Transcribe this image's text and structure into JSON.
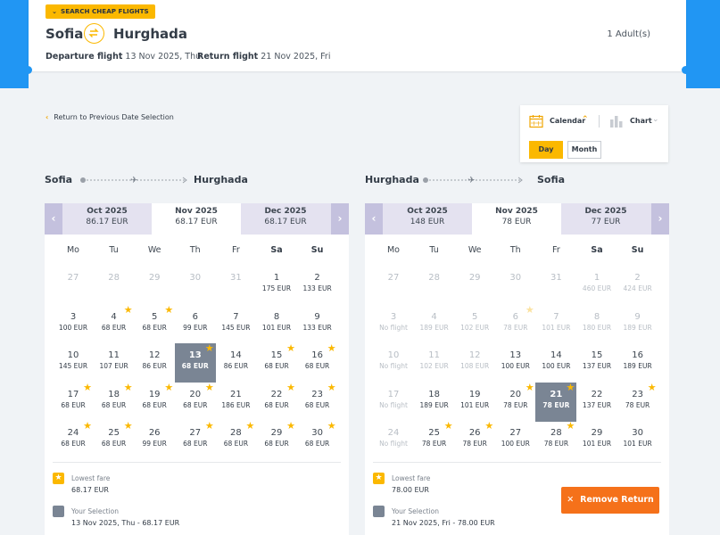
{
  "header": {
    "badge": "SEARCH CHEAP FLIGHTS",
    "origin": "Sofia",
    "destination": "Hurghada",
    "passengers": "1 Adult(s)",
    "departure_label": "Departure flight",
    "departure_date": "13 Nov 2025, Thu",
    "return_label": "Return flight",
    "return_date": "21 Nov 2025, Fri"
  },
  "back_link": "Return to Previous Date Selection",
  "view": {
    "calendar_label": "Calendar",
    "chart_label": "Chart",
    "day_label": "Day",
    "month_label": "Month"
  },
  "weekdays": [
    "Mo",
    "Tu",
    "We",
    "Th",
    "Fr",
    "Sa",
    "Su"
  ],
  "outbound": {
    "from": "Sofia",
    "to": "Hurghada",
    "months": [
      {
        "name": "Oct 2025",
        "price": "86.17 EUR"
      },
      {
        "name": "Nov 2025",
        "price": "68.17 EUR"
      },
      {
        "name": "Dec 2025",
        "price": "68.17 EUR"
      }
    ],
    "days": [
      {
        "d": "27",
        "p": "",
        "dis": true
      },
      {
        "d": "28",
        "p": "",
        "dis": true
      },
      {
        "d": "29",
        "p": "",
        "dis": true
      },
      {
        "d": "30",
        "p": "",
        "dis": true
      },
      {
        "d": "31",
        "p": "",
        "dis": true
      },
      {
        "d": "1",
        "p": "175 EUR"
      },
      {
        "d": "2",
        "p": "133 EUR"
      },
      {
        "d": "3",
        "p": "100 EUR"
      },
      {
        "d": "4",
        "p": "68 EUR",
        "star": true
      },
      {
        "d": "5",
        "p": "68 EUR",
        "star": true
      },
      {
        "d": "6",
        "p": "99 EUR"
      },
      {
        "d": "7",
        "p": "145 EUR"
      },
      {
        "d": "8",
        "p": "101 EUR"
      },
      {
        "d": "9",
        "p": "133 EUR"
      },
      {
        "d": "10",
        "p": "145 EUR"
      },
      {
        "d": "11",
        "p": "107 EUR"
      },
      {
        "d": "12",
        "p": "86 EUR"
      },
      {
        "d": "13",
        "p": "68 EUR",
        "star": true,
        "sel": true
      },
      {
        "d": "14",
        "p": "86 EUR"
      },
      {
        "d": "15",
        "p": "68 EUR",
        "star": true
      },
      {
        "d": "16",
        "p": "68 EUR",
        "star": true
      },
      {
        "d": "17",
        "p": "68 EUR",
        "star": true
      },
      {
        "d": "18",
        "p": "68 EUR",
        "star": true
      },
      {
        "d": "19",
        "p": "68 EUR",
        "star": true
      },
      {
        "d": "20",
        "p": "68 EUR",
        "star": true
      },
      {
        "d": "21",
        "p": "186 EUR"
      },
      {
        "d": "22",
        "p": "68 EUR",
        "star": true
      },
      {
        "d": "23",
        "p": "68 EUR",
        "star": true
      },
      {
        "d": "24",
        "p": "68 EUR",
        "star": true
      },
      {
        "d": "25",
        "p": "68 EUR",
        "star": true
      },
      {
        "d": "26",
        "p": "99 EUR"
      },
      {
        "d": "27",
        "p": "68 EUR",
        "star": true
      },
      {
        "d": "28",
        "p": "68 EUR",
        "star": true
      },
      {
        "d": "29",
        "p": "68 EUR",
        "star": true
      },
      {
        "d": "30",
        "p": "68 EUR",
        "star": true
      }
    ],
    "legend": {
      "lowest_label": "Lowest fare",
      "lowest_value": "68.17 EUR",
      "selection_label": "Your Selection",
      "selection_value": "13 Nov 2025, Thu - 68.17 EUR"
    }
  },
  "return": {
    "from": "Hurghada",
    "to": "Sofia",
    "months": [
      {
        "name": "Oct 2025",
        "price": "148 EUR"
      },
      {
        "name": "Nov 2025",
        "price": "78 EUR"
      },
      {
        "name": "Dec 2025",
        "price": "77 EUR"
      }
    ],
    "days": [
      {
        "d": "27",
        "p": "",
        "dis": true
      },
      {
        "d": "28",
        "p": "",
        "dis": true
      },
      {
        "d": "29",
        "p": "",
        "dis": true
      },
      {
        "d": "30",
        "p": "",
        "dis": true
      },
      {
        "d": "31",
        "p": "",
        "dis": true
      },
      {
        "d": "1",
        "p": "460 EUR",
        "dis": true
      },
      {
        "d": "2",
        "p": "424 EUR",
        "dis": true
      },
      {
        "d": "3",
        "p": "No flight",
        "dis": true
      },
      {
        "d": "4",
        "p": "189 EUR",
        "dis": true
      },
      {
        "d": "5",
        "p": "102 EUR",
        "dis": true
      },
      {
        "d": "6",
        "p": "78 EUR",
        "dis": true,
        "star": true
      },
      {
        "d": "7",
        "p": "101 EUR",
        "dis": true
      },
      {
        "d": "8",
        "p": "180 EUR",
        "dis": true
      },
      {
        "d": "9",
        "p": "189 EUR",
        "dis": true
      },
      {
        "d": "10",
        "p": "No flight",
        "dis": true
      },
      {
        "d": "11",
        "p": "102 EUR",
        "dis": true
      },
      {
        "d": "12",
        "p": "108 EUR",
        "dis": true
      },
      {
        "d": "13",
        "p": "100 EUR"
      },
      {
        "d": "14",
        "p": "100 EUR"
      },
      {
        "d": "15",
        "p": "137 EUR"
      },
      {
        "d": "16",
        "p": "189 EUR"
      },
      {
        "d": "17",
        "p": "No flight",
        "dis": true
      },
      {
        "d": "18",
        "p": "189 EUR"
      },
      {
        "d": "19",
        "p": "101 EUR"
      },
      {
        "d": "20",
        "p": "78 EUR",
        "star": true
      },
      {
        "d": "21",
        "p": "78 EUR",
        "star": true,
        "sel": true
      },
      {
        "d": "22",
        "p": "137 EUR"
      },
      {
        "d": "23",
        "p": "78 EUR",
        "star": true
      },
      {
        "d": "24",
        "p": "No flight",
        "dis": true
      },
      {
        "d": "25",
        "p": "78 EUR",
        "star": true
      },
      {
        "d": "26",
        "p": "78 EUR",
        "star": true
      },
      {
        "d": "27",
        "p": "100 EUR"
      },
      {
        "d": "28",
        "p": "78 EUR",
        "star": true
      },
      {
        "d": "29",
        "p": "101 EUR"
      },
      {
        "d": "30",
        "p": "101 EUR"
      }
    ],
    "legend": {
      "lowest_label": "Lowest fare",
      "lowest_value": "78.00 EUR",
      "selection_label": "Your Selection",
      "selection_value": "21 Nov 2025, Fri - 78.00 EUR"
    }
  },
  "remove_return": "Remove Return",
  "colors": {
    "accent": "#fbb800",
    "brand_blue": "#2196f3",
    "danger": "#f5711a",
    "selected": "#7a8594"
  }
}
